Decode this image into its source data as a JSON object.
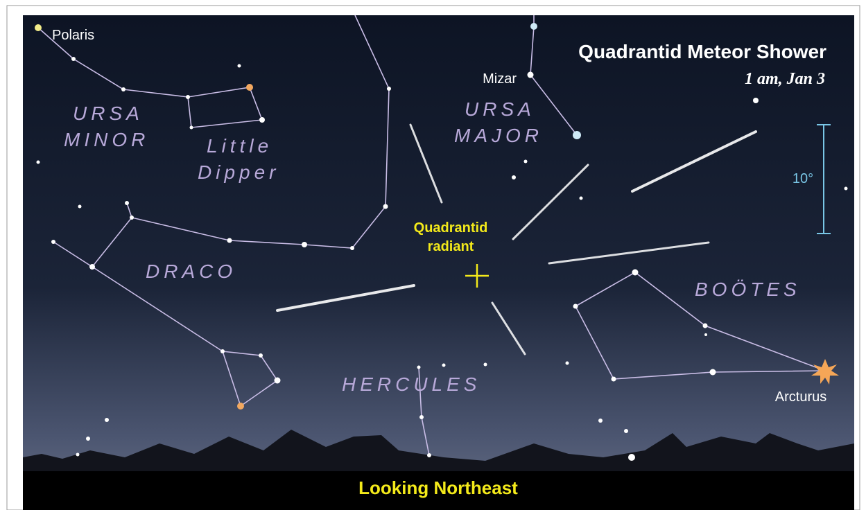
{
  "header": {
    "title": "Quadrantid Meteor Shower",
    "subtitle": "1 am, Jan 3"
  },
  "stars": [
    "Polaris",
    "Mizar",
    "Arcturus"
  ],
  "constellations": [
    {
      "lines": [
        "URSA",
        "MINOR"
      ]
    },
    {
      "lines": [
        "Little",
        "Dipper"
      ]
    },
    {
      "lines": [
        "URSA",
        "MAJOR"
      ]
    },
    {
      "lines": [
        "DRACO"
      ]
    },
    {
      "lines": [
        "HERCULES"
      ]
    },
    {
      "lines": [
        "BOÖTES"
      ]
    }
  ],
  "radiant": {
    "lines": [
      "Quadrantid",
      "radiant"
    ]
  },
  "scale": {
    "label": "10°"
  },
  "footer": "Looking Northeast"
}
